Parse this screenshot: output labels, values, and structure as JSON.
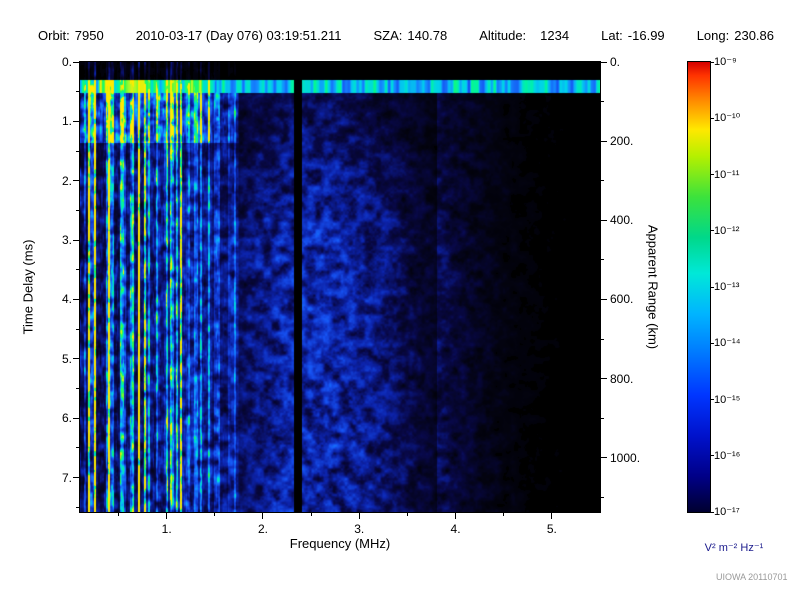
{
  "header": {
    "orbit_label": "Orbit:",
    "orbit": "7950",
    "datetime": "2010-03-17 (Day 076) 03:19:51.211",
    "sza_label": "SZA:",
    "sza": "140.78",
    "altitude_label": "Altitude:",
    "altitude": "1234",
    "lat_label": "Lat:",
    "lat": "-16.99",
    "long_label": "Long:",
    "long": "230.86"
  },
  "chart_data": {
    "type": "heatmap",
    "title": "",
    "xlabel": "Frequency (MHz)",
    "ylabel": "Time Delay (ms)",
    "y2label": "Apparent Range (km)",
    "xlim": [
      0.1,
      5.5
    ],
    "ylim": [
      0,
      7.58
    ],
    "x_major_ticks": [
      1,
      2,
      3,
      4,
      5
    ],
    "x_tick_labels": [
      "1.",
      "2.",
      "3.",
      "4.",
      "5."
    ],
    "y_major_ticks": [
      0,
      1,
      2,
      3,
      4,
      5,
      6,
      7
    ],
    "y_tick_labels": [
      "0.",
      "1.",
      "2.",
      "3.",
      "4.",
      "5.",
      "6.",
      "7."
    ],
    "y2_major_ticks_km": [
      0,
      200,
      400,
      600,
      800,
      1000
    ],
    "y2_tick_labels": [
      "0.",
      "200.",
      "400.",
      "600.",
      "800.",
      "1000."
    ],
    "range_km_per_ms": 150,
    "colorbar": {
      "unit": "V² m⁻² Hz⁻¹",
      "max_exp": -9,
      "min_exp": -17,
      "tick_labels": [
        "10⁻⁹",
        "10⁻¹⁰",
        "10⁻¹¹",
        "10⁻¹²",
        "10⁻¹³",
        "10⁻¹⁴",
        "10⁻¹⁵",
        "10⁻¹⁶",
        "10⁻¹⁷"
      ]
    },
    "features": {
      "description": "Radar sounder ionogram: bright horizontal surface/leakage band near 0.4 ms across all frequencies; dense bright green-cyan vertical plasma-line striations below 1.5 MHz extending full time range, strongest in first 1.4 ms; diffuse blue speckled ionospheric echo centered near 2.6 MHz growing with delay; narrow black gap column near 2.36 MHz; sparse faint blue blobs above 4 MHz on black background",
      "surface_band_ms": [
        0.3,
        0.52
      ],
      "plasma_lines_max_mhz": 1.6,
      "diffuse_center_mhz": 2.55,
      "gap_mhz": 2.36,
      "seed": 1337
    }
  },
  "watermark": "UIOWA 20110701",
  "colors": {
    "background": "#ffffff",
    "axis": "#000000",
    "unit_label": "#1a1a8c",
    "watermark": "#999999"
  }
}
